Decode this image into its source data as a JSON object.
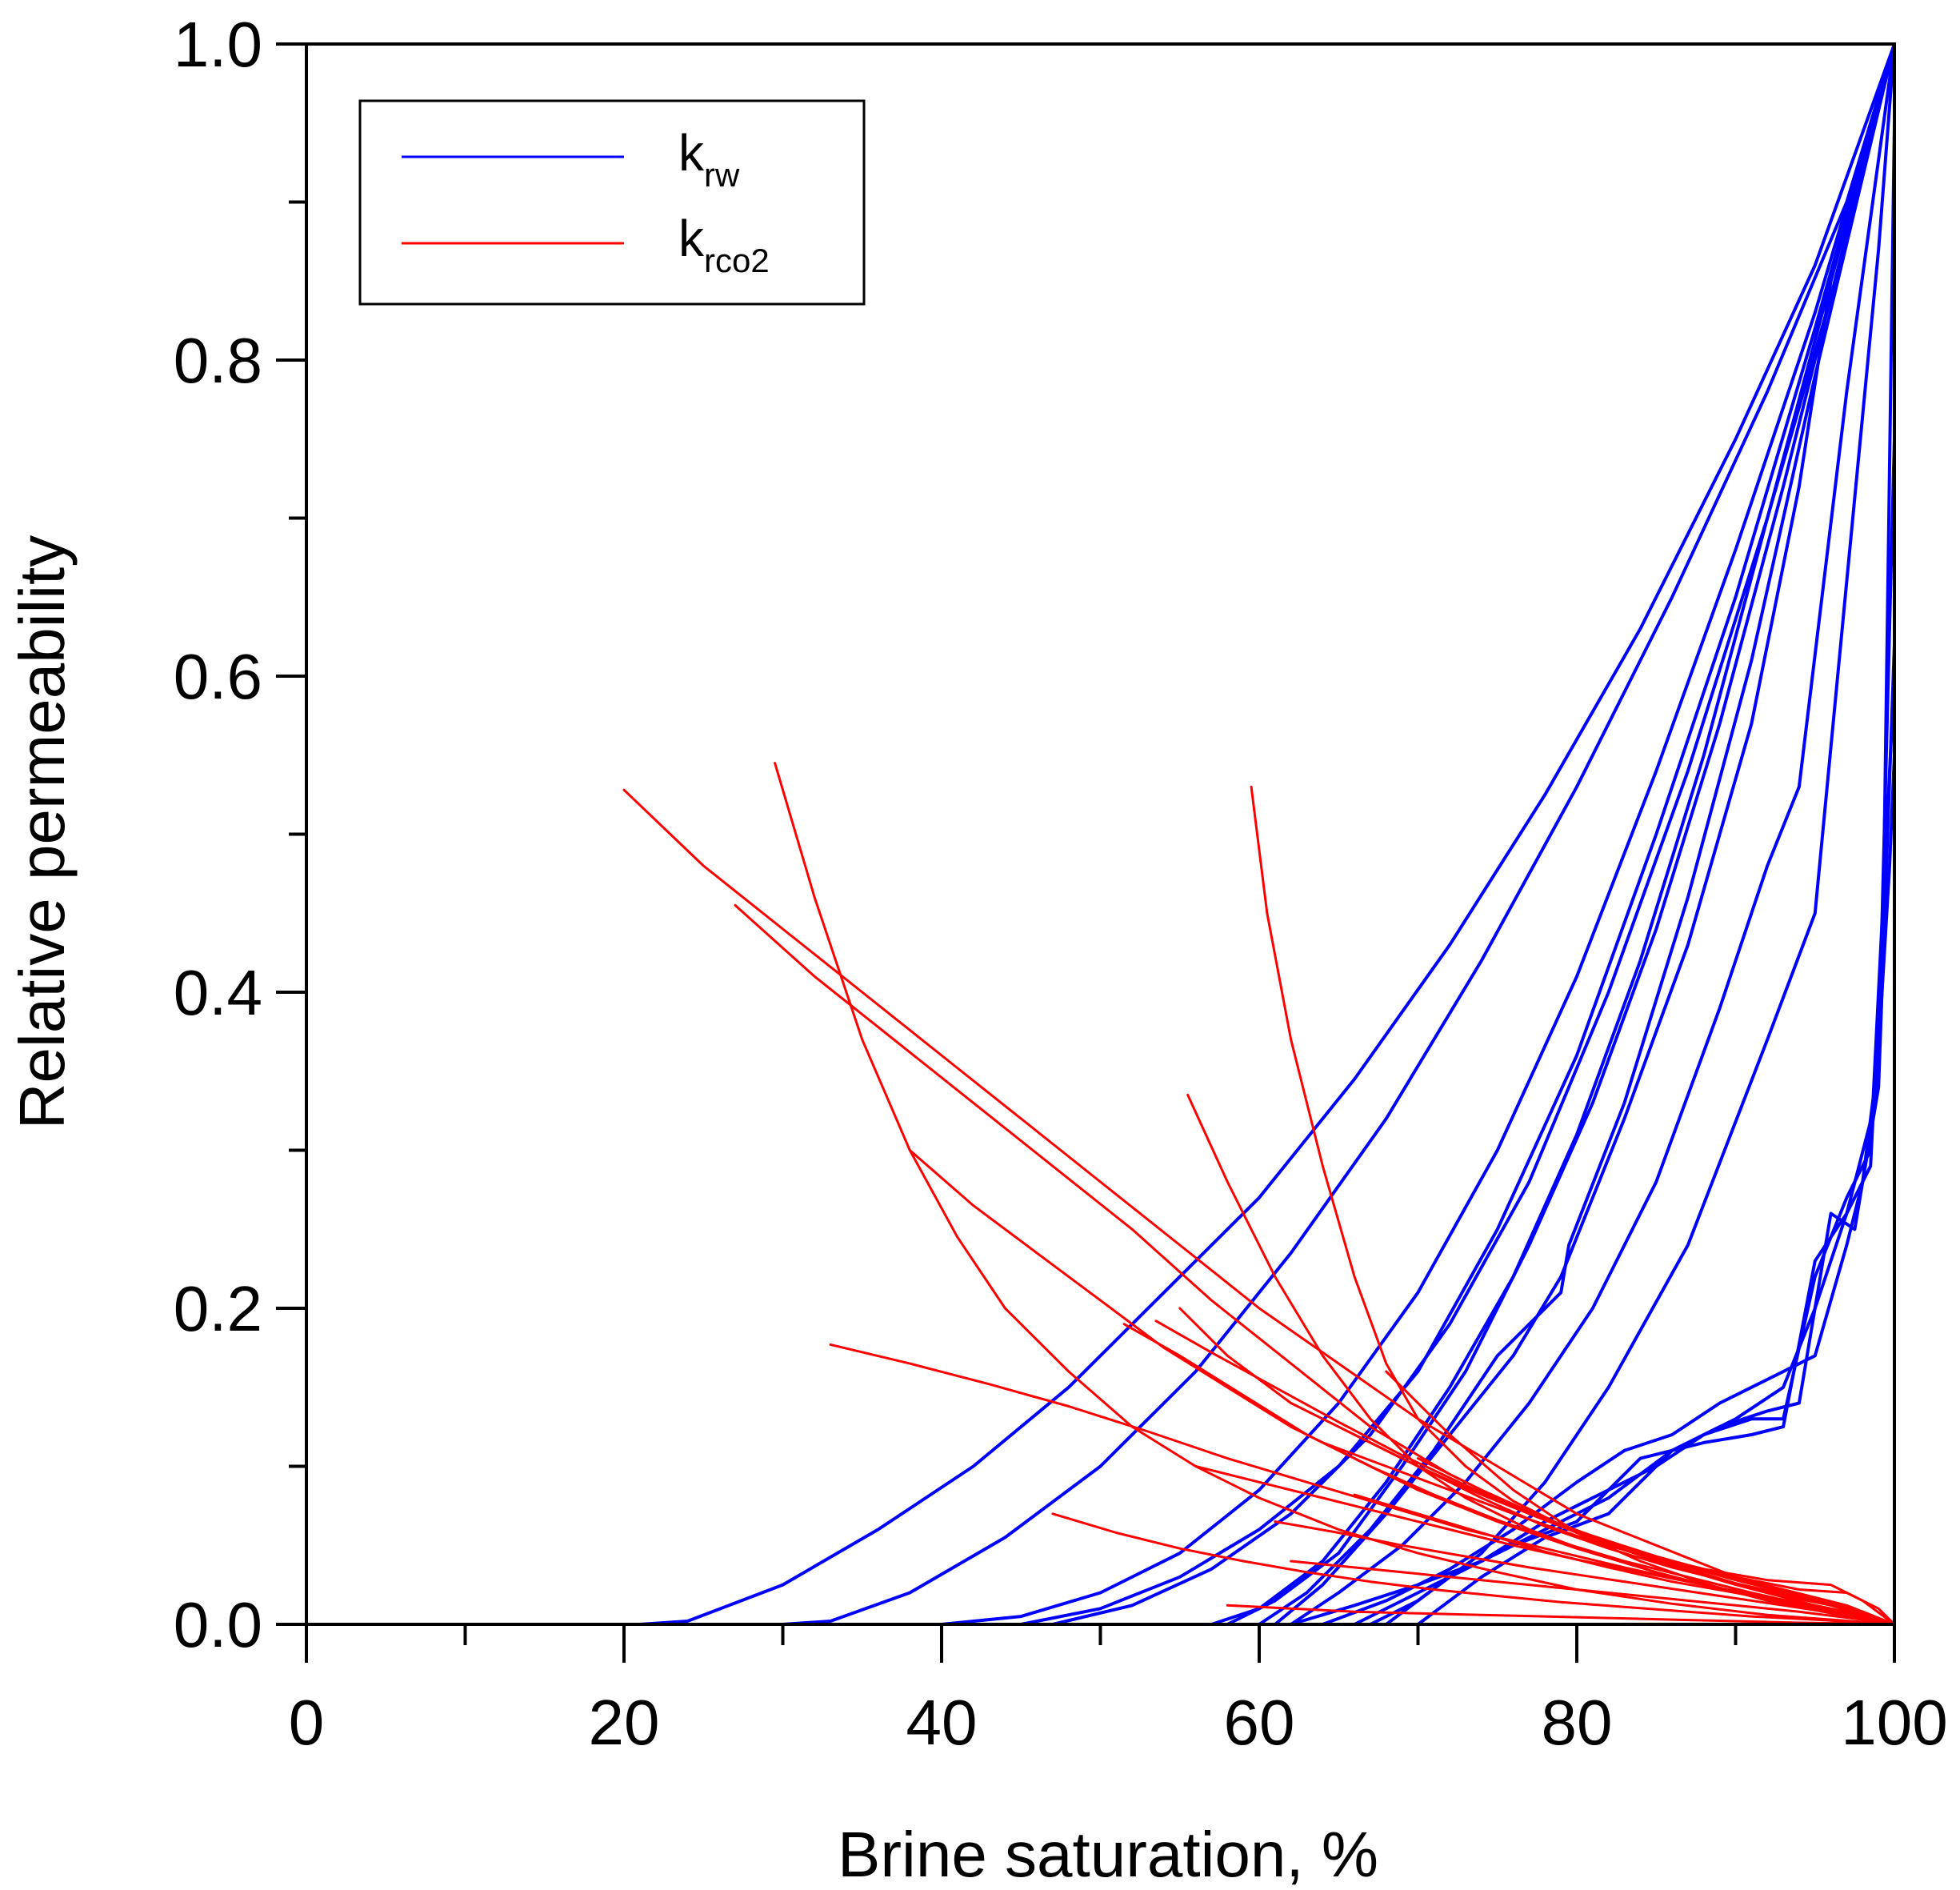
{
  "chart_data": {
    "type": "line",
    "title": "",
    "xlabel": "Brine saturation, %",
    "ylabel": "Relative permeability",
    "xlim": [
      0,
      100
    ],
    "ylim": [
      0,
      1.0
    ],
    "x_ticks": [
      0,
      20,
      40,
      60,
      80,
      100
    ],
    "x_minor_ticks": [
      10,
      30,
      50,
      70,
      90
    ],
    "y_ticks": [
      0.0,
      0.2,
      0.4,
      0.6,
      0.8,
      1.0
    ],
    "y_tick_labels": [
      "0.0",
      "0.2",
      "0.4",
      "0.6",
      "0.8",
      "1.0"
    ],
    "y_minor_ticks": [
      0.1,
      0.3,
      0.5,
      0.7,
      0.9
    ],
    "grid": false,
    "legend": {
      "position": "top-left",
      "entries": [
        {
          "base": "k",
          "sub": "rw",
          "color": "#0000ff"
        },
        {
          "base": "k",
          "sub": "rco2",
          "color": "#ff0000"
        }
      ]
    },
    "series": [
      {
        "name": "krw-1",
        "color": "#0000ff",
        "x": [
          21,
          24,
          30,
          36,
          42,
          48,
          54,
          60,
          66,
          72,
          78,
          84,
          90,
          95,
          100
        ],
        "y": [
          0,
          0.002,
          0.025,
          0.06,
          0.1,
          0.15,
          0.21,
          0.27,
          0.345,
          0.43,
          0.525,
          0.63,
          0.75,
          0.86,
          1.0
        ]
      },
      {
        "name": "krw-2",
        "color": "#0000ff",
        "x": [
          30,
          33,
          38,
          44,
          50,
          56,
          62,
          68,
          74,
          80,
          86,
          92,
          97,
          100
        ],
        "y": [
          0,
          0.002,
          0.02,
          0.055,
          0.1,
          0.16,
          0.235,
          0.32,
          0.42,
          0.53,
          0.65,
          0.78,
          0.9,
          1.0
        ]
      },
      {
        "name": "krw-3",
        "color": "#0000ff",
        "x": [
          40,
          45,
          50,
          55,
          60,
          65,
          70,
          75,
          80,
          85,
          90,
          95,
          100
        ],
        "y": [
          0,
          0.005,
          0.02,
          0.045,
          0.085,
          0.14,
          0.21,
          0.3,
          0.41,
          0.54,
          0.68,
          0.83,
          1.0
        ]
      },
      {
        "name": "krw-4",
        "color": "#0000ff",
        "x": [
          45,
          50,
          55,
          60,
          65,
          70,
          75,
          80,
          85,
          90,
          95,
          100
        ],
        "y": [
          0,
          0.01,
          0.03,
          0.06,
          0.1,
          0.16,
          0.25,
          0.36,
          0.5,
          0.65,
          0.82,
          1.0
        ]
      },
      {
        "name": "krw-5",
        "color": "#0000ff",
        "x": [
          47,
          52,
          57,
          62,
          67,
          72,
          77,
          82,
          87,
          92,
          96,
          100
        ],
        "y": [
          0,
          0.012,
          0.035,
          0.07,
          0.12,
          0.19,
          0.28,
          0.4,
          0.54,
          0.7,
          0.84,
          1.0
        ]
      },
      {
        "name": "krw-6",
        "color": "#0000ff",
        "x": [
          57,
          60,
          64,
          68,
          72,
          76,
          80,
          84,
          88,
          92,
          96,
          100
        ],
        "y": [
          0,
          0.01,
          0.04,
          0.09,
          0.15,
          0.22,
          0.31,
          0.42,
          0.55,
          0.7,
          0.85,
          1.0
        ]
      },
      {
        "name": "krw-7",
        "color": "#0000ff",
        "x": [
          58,
          61,
          65,
          69,
          73,
          77,
          81,
          85,
          89,
          93,
          97,
          100
        ],
        "y": [
          0,
          0.015,
          0.045,
          0.1,
          0.16,
          0.24,
          0.33,
          0.44,
          0.57,
          0.72,
          0.88,
          1.0
        ]
      },
      {
        "name": "krw-8",
        "color": "#0000ff",
        "x": [
          60,
          63,
          67,
          71,
          75,
          79,
          79.5,
          83,
          87,
          91,
          95,
          100
        ],
        "y": [
          0,
          0.02,
          0.06,
          0.11,
          0.17,
          0.21,
          0.24,
          0.33,
          0.46,
          0.61,
          0.79,
          1.0
        ]
      },
      {
        "name": "krw-9",
        "color": "#0000ff",
        "x": [
          61,
          64,
          68,
          72,
          76,
          79,
          83,
          87,
          91,
          94,
          96,
          100
        ],
        "y": [
          0,
          0.025,
          0.07,
          0.12,
          0.17,
          0.22,
          0.32,
          0.43,
          0.57,
          0.72,
          0.85,
          1.0
        ]
      },
      {
        "name": "krw-10",
        "color": "#0000ff",
        "x": [
          62,
          65,
          69,
          73,
          77,
          81,
          85,
          89,
          92,
          94,
          97,
          100
        ],
        "y": [
          0,
          0.02,
          0.05,
          0.09,
          0.14,
          0.2,
          0.28,
          0.39,
          0.48,
          0.53,
          0.78,
          1.0
        ]
      },
      {
        "name": "krw-11",
        "color": "#0000ff",
        "x": [
          67,
          70,
          74,
          78,
          82,
          87,
          92,
          95,
          97,
          99,
          100
        ],
        "y": [
          0,
          0.015,
          0.045,
          0.09,
          0.15,
          0.24,
          0.37,
          0.45,
          0.66,
          0.87,
          1.0
        ]
      },
      {
        "name": "krw-12",
        "color": "#0000ff",
        "x": [
          62,
          66,
          70,
          74,
          78,
          82,
          86,
          90,
          93,
          95,
          97,
          98.5,
          99.3,
          100
        ],
        "y": [
          0,
          0.012,
          0.025,
          0.04,
          0.06,
          0.08,
          0.11,
          0.13,
          0.15,
          0.2,
          0.26,
          0.29,
          0.45,
          0.95
        ]
      },
      {
        "name": "krw-13",
        "color": "#0000ff",
        "x": [
          64,
          68,
          72,
          76,
          80,
          83,
          86,
          89,
          92,
          95,
          97,
          98,
          99,
          100
        ],
        "y": [
          0,
          0.015,
          0.035,
          0.06,
          0.09,
          0.11,
          0.12,
          0.14,
          0.155,
          0.17,
          0.24,
          0.28,
          0.36,
          0.75
        ]
      },
      {
        "name": "krw-14",
        "color": "#0000ff",
        "x": [
          66,
          70,
          74,
          78,
          82,
          85,
          88,
          91,
          93,
          95,
          97,
          98.5,
          99.5,
          100
        ],
        "y": [
          0,
          0.02,
          0.04,
          0.065,
          0.085,
          0.1,
          0.12,
          0.13,
          0.13,
          0.22,
          0.27,
          0.3,
          0.5,
          0.6
        ]
      },
      {
        "name": "krw-15",
        "color": "#0000ff",
        "x": [
          68,
          72,
          76,
          80,
          84,
          88,
          91,
          93,
          95,
          97,
          98.8,
          99.7,
          100
        ],
        "y": [
          0,
          0.03,
          0.05,
          0.065,
          0.105,
          0.115,
          0.12,
          0.125,
          0.23,
          0.26,
          0.33,
          0.48,
          0.55
        ]
      },
      {
        "name": "krw-16",
        "color": "#0000ff",
        "x": [
          70,
          74,
          78,
          82,
          86,
          89,
          92,
          94,
          96,
          97.5,
          99,
          100
        ],
        "y": [
          0,
          0.03,
          0.055,
          0.07,
          0.11,
          0.125,
          0.135,
          0.14,
          0.26,
          0.25,
          0.34,
          0.62
        ]
      },
      {
        "name": "krco2-1",
        "color": "#ff0000",
        "x": [
          20,
          25,
          30,
          35,
          40,
          45,
          50,
          55,
          60,
          65,
          70,
          75,
          80,
          85,
          90,
          95,
          100
        ],
        "y": [
          0.528,
          0.48,
          0.44,
          0.4,
          0.36,
          0.32,
          0.28,
          0.24,
          0.2,
          0.165,
          0.13,
          0.1,
          0.07,
          0.05,
          0.03,
          0.015,
          0
        ]
      },
      {
        "name": "krco2-2",
        "color": "#ff0000",
        "x": [
          27,
          32,
          37,
          42,
          47,
          52,
          57,
          62,
          67,
          72,
          77,
          82,
          87,
          92,
          97,
          100
        ],
        "y": [
          0.455,
          0.41,
          0.37,
          0.33,
          0.29,
          0.25,
          0.205,
          0.165,
          0.125,
          0.095,
          0.07,
          0.05,
          0.035,
          0.02,
          0.01,
          0
        ]
      },
      {
        "name": "krco2-3",
        "color": "#ff0000",
        "x": [
          29.5,
          32,
          35,
          38,
          41,
          44,
          48,
          52,
          56,
          60,
          65,
          70,
          75,
          80,
          86,
          92,
          100
        ],
        "y": [
          0.545,
          0.46,
          0.37,
          0.3,
          0.245,
          0.2,
          0.16,
          0.125,
          0.1,
          0.08,
          0.06,
          0.045,
          0.033,
          0.022,
          0.013,
          0.006,
          0
        ]
      },
      {
        "name": "krco2-4",
        "color": "#ff0000",
        "x": [
          38,
          42,
          46,
          50,
          54,
          58,
          62,
          66,
          70,
          75,
          80,
          85,
          90,
          95,
          100
        ],
        "y": [
          0.3,
          0.265,
          0.235,
          0.205,
          0.175,
          0.15,
          0.125,
          0.105,
          0.085,
          0.065,
          0.048,
          0.033,
          0.02,
          0.01,
          0
        ]
      },
      {
        "name": "krco2-5",
        "color": "#ff0000",
        "x": [
          33,
          38,
          43,
          48,
          53,
          58,
          63,
          68,
          73,
          78,
          83,
          88,
          93,
          98,
          100
        ],
        "y": [
          0.177,
          0.165,
          0.152,
          0.138,
          0.122,
          0.105,
          0.09,
          0.075,
          0.06,
          0.048,
          0.036,
          0.025,
          0.015,
          0.005,
          0
        ]
      },
      {
        "name": "krco2-6",
        "color": "#ff0000",
        "x": [
          59.5,
          60.5,
          62,
          64,
          66,
          68,
          70,
          73,
          76,
          80,
          85,
          90,
          95,
          100
        ],
        "y": [
          0.53,
          0.45,
          0.37,
          0.29,
          0.22,
          0.165,
          0.13,
          0.1,
          0.078,
          0.058,
          0.04,
          0.025,
          0.012,
          0
        ]
      },
      {
        "name": "krco2-7",
        "color": "#ff0000",
        "x": [
          55.5,
          58,
          61,
          64,
          67,
          70,
          73,
          77,
          81,
          86,
          91,
          96,
          100
        ],
        "y": [
          0.335,
          0.28,
          0.22,
          0.17,
          0.13,
          0.1,
          0.08,
          0.06,
          0.045,
          0.03,
          0.018,
          0.008,
          0
        ]
      },
      {
        "name": "krco2-8",
        "color": "#ff0000",
        "x": [
          51.5,
          55,
          59,
          63,
          67,
          71,
          75,
          79,
          83,
          87,
          91,
          95,
          100
        ],
        "y": [
          0.19,
          0.17,
          0.145,
          0.12,
          0.1,
          0.082,
          0.066,
          0.052,
          0.04,
          0.03,
          0.02,
          0.011,
          0
        ]
      },
      {
        "name": "krco2-9",
        "color": "#ff0000",
        "x": [
          53.5,
          57,
          61,
          65,
          69,
          73,
          77,
          81,
          85,
          89,
          93,
          97,
          100
        ],
        "y": [
          0.192,
          0.172,
          0.15,
          0.128,
          0.107,
          0.088,
          0.07,
          0.056,
          0.043,
          0.032,
          0.022,
          0.012,
          0
        ]
      },
      {
        "name": "krco2-10",
        "color": "#ff0000",
        "x": [
          55,
          58,
          62,
          66,
          70,
          74,
          78,
          82,
          86,
          90,
          94,
          98,
          100
        ],
        "y": [
          0.2,
          0.17,
          0.14,
          0.12,
          0.1,
          0.08,
          0.062,
          0.048,
          0.036,
          0.026,
          0.017,
          0.008,
          0
        ]
      },
      {
        "name": "krco2-11",
        "color": "#ff0000",
        "x": [
          47,
          51,
          55,
          59,
          63,
          67,
          71,
          75,
          79,
          83,
          87,
          91,
          95,
          100
        ],
        "y": [
          0.07,
          0.058,
          0.048,
          0.04,
          0.033,
          0.027,
          0.022,
          0.018,
          0.014,
          0.011,
          0.008,
          0.005,
          0.003,
          0
        ]
      },
      {
        "name": "krco2-12",
        "color": "#ff0000",
        "x": [
          56,
          60,
          64,
          68,
          72,
          76,
          80,
          84,
          88,
          92,
          96,
          100
        ],
        "y": [
          0.1,
          0.09,
          0.08,
          0.07,
          0.06,
          0.05,
          0.041,
          0.033,
          0.025,
          0.017,
          0.009,
          0
        ]
      },
      {
        "name": "krco2-13",
        "color": "#ff0000",
        "x": [
          61,
          65,
          69,
          73,
          77,
          81,
          85,
          89,
          93,
          97,
          100
        ],
        "y": [
          0.065,
          0.058,
          0.05,
          0.043,
          0.036,
          0.03,
          0.024,
          0.018,
          0.012,
          0.006,
          0
        ]
      },
      {
        "name": "krco2-14",
        "color": "#ff0000",
        "x": [
          64,
          68,
          72,
          76,
          80,
          84,
          88,
          92,
          96,
          98,
          100
        ],
        "y": [
          0.115,
          0.1,
          0.085,
          0.07,
          0.056,
          0.044,
          0.035,
          0.028,
          0.025,
          0.015,
          0
        ]
      },
      {
        "name": "krco2-15",
        "color": "#ff0000",
        "x": [
          66,
          70,
          74,
          78,
          82,
          86,
          90,
          94,
          97,
          99,
          100
        ],
        "y": [
          0.12,
          0.1,
          0.082,
          0.066,
          0.052,
          0.04,
          0.03,
          0.022,
          0.02,
          0.01,
          0
        ]
      },
      {
        "name": "krco2-16",
        "color": "#ff0000",
        "x": [
          68,
          72,
          76,
          80,
          84,
          88,
          92,
          96,
          100
        ],
        "y": [
          0.16,
          0.12,
          0.085,
          0.058,
          0.04,
          0.026,
          0.015,
          0.007,
          0
        ]
      },
      {
        "name": "krco2-17",
        "color": "#ff0000",
        "x": [
          62,
          66,
          70,
          74,
          78,
          82,
          86,
          90,
          94,
          98,
          100
        ],
        "y": [
          0.04,
          0.036,
          0.032,
          0.028,
          0.024,
          0.02,
          0.016,
          0.012,
          0.008,
          0.003,
          0
        ]
      },
      {
        "name": "krco2-18",
        "color": "#ff0000",
        "x": [
          58,
          62,
          66,
          70,
          74,
          78,
          82,
          86,
          90,
          94,
          98,
          100
        ],
        "y": [
          0.012,
          0.01,
          0.008,
          0.007,
          0.006,
          0.005,
          0.004,
          0.003,
          0.002,
          0.001,
          0.0005,
          0
        ]
      },
      {
        "name": "krco2-19",
        "color": "#ff0000",
        "x": [
          66,
          70,
          74,
          78,
          82,
          86,
          90,
          94,
          98,
          100
        ],
        "y": [
          0.082,
          0.07,
          0.058,
          0.046,
          0.036,
          0.027,
          0.02,
          0.014,
          0.006,
          0
        ]
      },
      {
        "name": "krco2-20",
        "color": "#ff0000",
        "x": [
          70,
          74,
          78,
          82,
          86,
          90,
          94,
          98,
          100
        ],
        "y": [
          0.105,
          0.085,
          0.067,
          0.052,
          0.039,
          0.028,
          0.018,
          0.008,
          0
        ]
      }
    ]
  }
}
